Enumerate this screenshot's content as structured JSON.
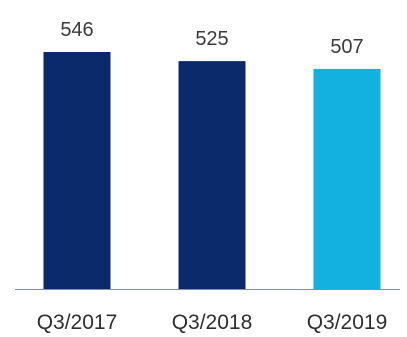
{
  "chart_data": {
    "type": "bar",
    "categories": [
      "Q3/2017",
      "Q3/2018",
      "Q3/2019"
    ],
    "values": [
      546,
      525,
      507
    ],
    "data_labels": [
      "546",
      "525",
      "507"
    ],
    "colors": [
      "#0b2a6b",
      "#0b2a6b",
      "#12b1e0"
    ],
    "axis_color": "#7f8fa6",
    "title": "",
    "xlabel": "",
    "ylabel": "",
    "ylim": [
      0,
      546
    ],
    "grid": false,
    "legend": "none"
  }
}
